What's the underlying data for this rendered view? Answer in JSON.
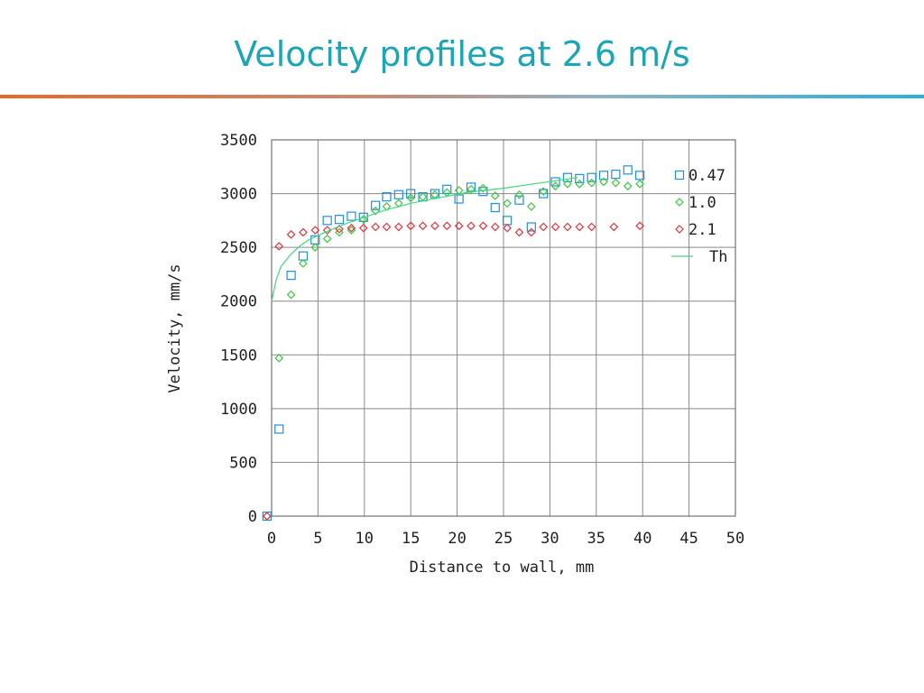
{
  "slide": {
    "title": "Velocity profiles at 2.6 m/s"
  },
  "colors": {
    "title": "#1aa6b7",
    "s047": "#1f8fe0",
    "s10": "#3cc83c",
    "s21": "#e8303a",
    "th": "#3cdc7a"
  },
  "chart_data": {
    "type": "scatter",
    "xlabel": "Distance to wall, mm",
    "ylabel": "Velocity, mm/s",
    "xlim": [
      0,
      50
    ],
    "ylim": [
      0,
      3500
    ],
    "xticks": [
      "0",
      "5",
      "10",
      "15",
      "20",
      "25",
      "30",
      "35",
      "40",
      "45",
      "50"
    ],
    "yticks": [
      "0",
      "500",
      "1000",
      "1500",
      "2000",
      "2500",
      "3000",
      "3500"
    ],
    "grid": true,
    "legend_position": "top-right",
    "series": [
      {
        "name": "0.47",
        "marker": "square",
        "color": "#1f8fe0",
        "points": [
          [
            -0.5,
            0
          ],
          [
            0.8,
            810
          ],
          [
            2.1,
            2240
          ],
          [
            3.4,
            2420
          ],
          [
            4.7,
            2570
          ],
          [
            6.0,
            2750
          ],
          [
            7.3,
            2760
          ],
          [
            8.6,
            2790
          ],
          [
            9.9,
            2780
          ],
          [
            11.2,
            2890
          ],
          [
            12.4,
            2970
          ],
          [
            13.7,
            2990
          ],
          [
            15.0,
            3000
          ],
          [
            16.3,
            2970
          ],
          [
            17.6,
            3000
          ],
          [
            18.9,
            3040
          ],
          [
            20.2,
            2950
          ],
          [
            21.5,
            3060
          ],
          [
            22.8,
            3020
          ],
          [
            24.1,
            2870
          ],
          [
            25.4,
            2750
          ],
          [
            26.7,
            2940
          ],
          [
            28.0,
            2690
          ],
          [
            29.3,
            3000
          ],
          [
            30.6,
            3110
          ],
          [
            31.9,
            3150
          ],
          [
            33.2,
            3140
          ],
          [
            34.5,
            3150
          ],
          [
            35.8,
            3170
          ],
          [
            37.1,
            3180
          ],
          [
            38.4,
            3220
          ],
          [
            39.7,
            3170
          ]
        ]
      },
      {
        "name": "1.0",
        "marker": "diamond",
        "color": "#3cc83c",
        "points": [
          [
            -0.5,
            0
          ],
          [
            0.8,
            1470
          ],
          [
            2.1,
            2060
          ],
          [
            3.4,
            2350
          ],
          [
            4.7,
            2500
          ],
          [
            6.0,
            2580
          ],
          [
            7.3,
            2640
          ],
          [
            8.6,
            2660
          ],
          [
            9.9,
            2760
          ],
          [
            11.2,
            2840
          ],
          [
            12.4,
            2880
          ],
          [
            13.7,
            2910
          ],
          [
            15.0,
            2960
          ],
          [
            16.3,
            2970
          ],
          [
            17.6,
            2990
          ],
          [
            18.9,
            3010
          ],
          [
            20.2,
            3030
          ],
          [
            21.5,
            3040
          ],
          [
            22.8,
            3050
          ],
          [
            24.1,
            2980
          ],
          [
            25.4,
            2910
          ],
          [
            26.7,
            2990
          ],
          [
            28.0,
            2880
          ],
          [
            29.3,
            3020
          ],
          [
            30.6,
            3070
          ],
          [
            31.9,
            3090
          ],
          [
            33.2,
            3090
          ],
          [
            34.5,
            3100
          ],
          [
            35.8,
            3110
          ],
          [
            37.1,
            3100
          ],
          [
            38.4,
            3070
          ],
          [
            39.7,
            3090
          ]
        ]
      },
      {
        "name": "2.1",
        "marker": "diamond",
        "color": "#e8303a",
        "points": [
          [
            -0.5,
            0
          ],
          [
            0.8,
            2510
          ],
          [
            2.1,
            2620
          ],
          [
            3.4,
            2640
          ],
          [
            4.7,
            2660
          ],
          [
            6.0,
            2660
          ],
          [
            7.3,
            2670
          ],
          [
            8.6,
            2680
          ],
          [
            9.9,
            2680
          ],
          [
            11.2,
            2690
          ],
          [
            12.4,
            2690
          ],
          [
            13.7,
            2690
          ],
          [
            15.0,
            2700
          ],
          [
            16.3,
            2700
          ],
          [
            17.6,
            2700
          ],
          [
            18.9,
            2700
          ],
          [
            20.2,
            2700
          ],
          [
            21.5,
            2700
          ],
          [
            22.8,
            2700
          ],
          [
            24.1,
            2690
          ],
          [
            25.4,
            2680
          ],
          [
            26.7,
            2640
          ],
          [
            28.0,
            2640
          ],
          [
            29.3,
            2690
          ],
          [
            30.6,
            2690
          ],
          [
            31.9,
            2690
          ],
          [
            33.2,
            2690
          ],
          [
            34.5,
            2690
          ],
          [
            36.9,
            2690
          ],
          [
            39.7,
            2700
          ]
        ]
      },
      {
        "name": "Th",
        "marker": "line",
        "color": "#3cdc7a",
        "points": [
          [
            0,
            2000
          ],
          [
            0.5,
            2200
          ],
          [
            1,
            2320
          ],
          [
            2,
            2430
          ],
          [
            3,
            2510
          ],
          [
            4,
            2570
          ],
          [
            6,
            2650
          ],
          [
            8,
            2720
          ],
          [
            10,
            2780
          ],
          [
            12,
            2840
          ],
          [
            15,
            2910
          ],
          [
            18,
            2960
          ],
          [
            21,
            3010
          ],
          [
            25,
            3050
          ],
          [
            29,
            3100
          ],
          [
            33,
            3150
          ]
        ]
      }
    ]
  }
}
